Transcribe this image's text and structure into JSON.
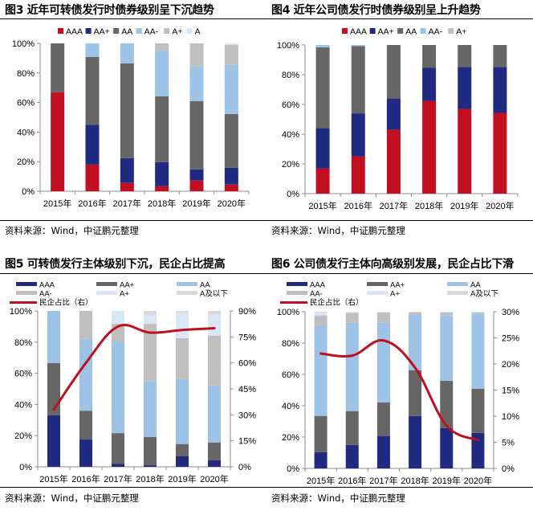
{
  "figures": [
    {
      "title": "图3   近年可转债发行时债券级别呈下沉趋势",
      "source": "资料来源：Wind，中证鹏元整理"
    },
    {
      "title": "图4   近年公司债发行时债券级别呈上升趋势",
      "source": "资料来源：Wind，中证鹏元整理"
    },
    {
      "title": "图5   可转债发行主体级别下沉，民企占比提高",
      "source": "资料来源：Wind，中证鹏元整理"
    },
    {
      "title": "图6   公司债发行主体向高级别发展，民企占比下滑",
      "source": "资料来源：Wind，中证鹏元整理"
    }
  ],
  "chart_data": [
    {
      "type": "bar",
      "stacked": true,
      "percent": true,
      "title": "近年可转债发行时债券级别呈下沉趋势",
      "categories": [
        "2015年",
        "2016年",
        "2017年",
        "2018年",
        "2019年",
        "2020年"
      ],
      "yticks": [
        "0%",
        "20%",
        "40%",
        "60%",
        "80%",
        "100%"
      ],
      "ylim": [
        0,
        100
      ],
      "legend_position": "top",
      "series": [
        {
          "name": "AAA",
          "color": "#C00F20",
          "values": [
            67,
            18,
            5.6,
            3.4,
            7.2,
            4.5
          ]
        },
        {
          "name": "AA+",
          "color": "#202A80",
          "values": [
            0,
            27,
            16.8,
            16.3,
            7.6,
            11.4
          ]
        },
        {
          "name": "AA",
          "color": "#666666",
          "values": [
            33,
            45.8,
            64.1,
            44.5,
            46.2,
            36.3
          ]
        },
        {
          "name": "AA-",
          "color": "#9DC3E6",
          "values": [
            0,
            9.2,
            13.5,
            31.1,
            23.3,
            33.2
          ]
        },
        {
          "name": "A+",
          "color": "#BFBFBF",
          "values": [
            0,
            0,
            0,
            4.7,
            15.7,
            13.5
          ]
        },
        {
          "name": "A",
          "color": "#DAE8F5",
          "values": [
            0,
            0,
            0,
            0,
            0,
            1.1
          ]
        }
      ]
    },
    {
      "type": "bar",
      "stacked": true,
      "percent": true,
      "title": "近年公司债发行时债券级别呈上升趋势",
      "categories": [
        "2015年",
        "2016年",
        "2017年",
        "2018年",
        "2019年",
        "2020年"
      ],
      "yticks": [
        "0%",
        "20%",
        "40%",
        "60%",
        "80%",
        "100%"
      ],
      "ylim": [
        0,
        100
      ],
      "legend_position": "top",
      "series": [
        {
          "name": "AAA",
          "color": "#C00F20",
          "values": [
            17,
            25.1,
            43,
            62.4,
            57,
            54.3
          ]
        },
        {
          "name": "AA+",
          "color": "#202A80",
          "values": [
            27,
            28.9,
            21,
            22.2,
            28.1,
            30.8
          ]
        },
        {
          "name": "AA",
          "color": "#666666",
          "values": [
            54.4,
            45.2,
            36,
            15.4,
            14.9,
            14.9
          ]
        },
        {
          "name": "AA-",
          "color": "#9DC3E6",
          "values": [
            1.6,
            0.8,
            0,
            0,
            0,
            0
          ]
        },
        {
          "name": "A+",
          "color": "#BFBFBF",
          "values": [
            0,
            0,
            0,
            0,
            0,
            0
          ]
        }
      ]
    },
    {
      "type": "bar+line",
      "stacked": true,
      "percent": true,
      "title": "可转债发行主体级别下沉，民企占比提高",
      "categories": [
        "2015年",
        "2016年",
        "2017年",
        "2018年",
        "2019年",
        "2020年"
      ],
      "yticks": [
        "0%",
        "20%",
        "40%",
        "60%",
        "80%",
        "100%"
      ],
      "ylim": [
        0,
        100
      ],
      "y2ticks": [
        "0%",
        "15%",
        "30%",
        "45%",
        "60%",
        "75%",
        "90%"
      ],
      "y2lim": [
        0,
        90
      ],
      "legend_position": "top",
      "series": [
        {
          "name": "AAA",
          "color": "#202A80",
          "values": [
            33,
            17.5,
            2,
            1,
            6.7,
            4.3
          ]
        },
        {
          "name": "AA+",
          "color": "#666666",
          "values": [
            33.6,
            18.5,
            19.6,
            18.2,
            7.9,
            11.3
          ]
        },
        {
          "name": "AA",
          "color": "#9DC3E6",
          "values": [
            33.4,
            46,
            58.8,
            35.6,
            41.7,
            36.6
          ]
        },
        {
          "name": "AA-",
          "color": "#BFBFBF",
          "values": [
            0,
            18,
            11.3,
            36.9,
            26.2,
            32
          ]
        },
        {
          "name": "A+",
          "color": "#DAE8F5",
          "values": [
            0,
            0,
            8.3,
            5.3,
            16.3,
            13.4
          ]
        },
        {
          "name": "A及以下",
          "color": "#D9D9D9",
          "values": [
            0,
            0,
            0,
            3,
            1.2,
            2.4
          ]
        }
      ],
      "line": {
        "name": "民企占比（右）",
        "color": "#C00F20",
        "axis": "right",
        "values": [
          33,
          60,
          81,
          77.5,
          79,
          80
        ]
      }
    },
    {
      "type": "bar+line",
      "stacked": true,
      "percent": true,
      "title": "公司债发行主体向高级别发展，民企占比下滑",
      "categories": [
        "2015年",
        "2016年",
        "2017年",
        "2018年",
        "2019年",
        "2020年"
      ],
      "yticks": [
        "0%",
        "20%",
        "40%",
        "60%",
        "80%",
        "100%"
      ],
      "ylim": [
        0,
        100
      ],
      "y2ticks": [
        "0%",
        "5%",
        "10%",
        "15%",
        "20%",
        "25%",
        "30%"
      ],
      "y2lim": [
        0,
        30
      ],
      "legend_position": "top",
      "series": [
        {
          "name": "AAA",
          "color": "#202A80",
          "values": [
            10.4,
            15,
            20.7,
            33.5,
            25.8,
            22.7
          ]
        },
        {
          "name": "AA+",
          "color": "#666666",
          "values": [
            23.1,
            21.6,
            21.5,
            29.2,
            30.2,
            28.2
          ]
        },
        {
          "name": "AA",
          "color": "#9DC3E6",
          "values": [
            57.5,
            56.4,
            50.8,
            35.3,
            41.6,
            47.7
          ]
        },
        {
          "name": "AA-",
          "color": "#BFBFBF",
          "values": [
            6.6,
            6.3,
            6.6,
            1.7,
            2,
            0.9
          ]
        },
        {
          "name": "A+",
          "color": "#DAE8F5",
          "values": [
            1.9,
            0.7,
            0.4,
            0.3,
            0.4,
            0.5
          ]
        },
        {
          "name": "A及以下",
          "color": "#D9D9D9",
          "values": [
            0.5,
            0,
            0,
            0,
            0,
            0
          ]
        }
      ],
      "line": {
        "name": "民企占比（右）",
        "color": "#C00F20",
        "axis": "right",
        "values": [
          22,
          21.6,
          24.5,
          19.3,
          8.2,
          5.4
        ]
      }
    }
  ]
}
